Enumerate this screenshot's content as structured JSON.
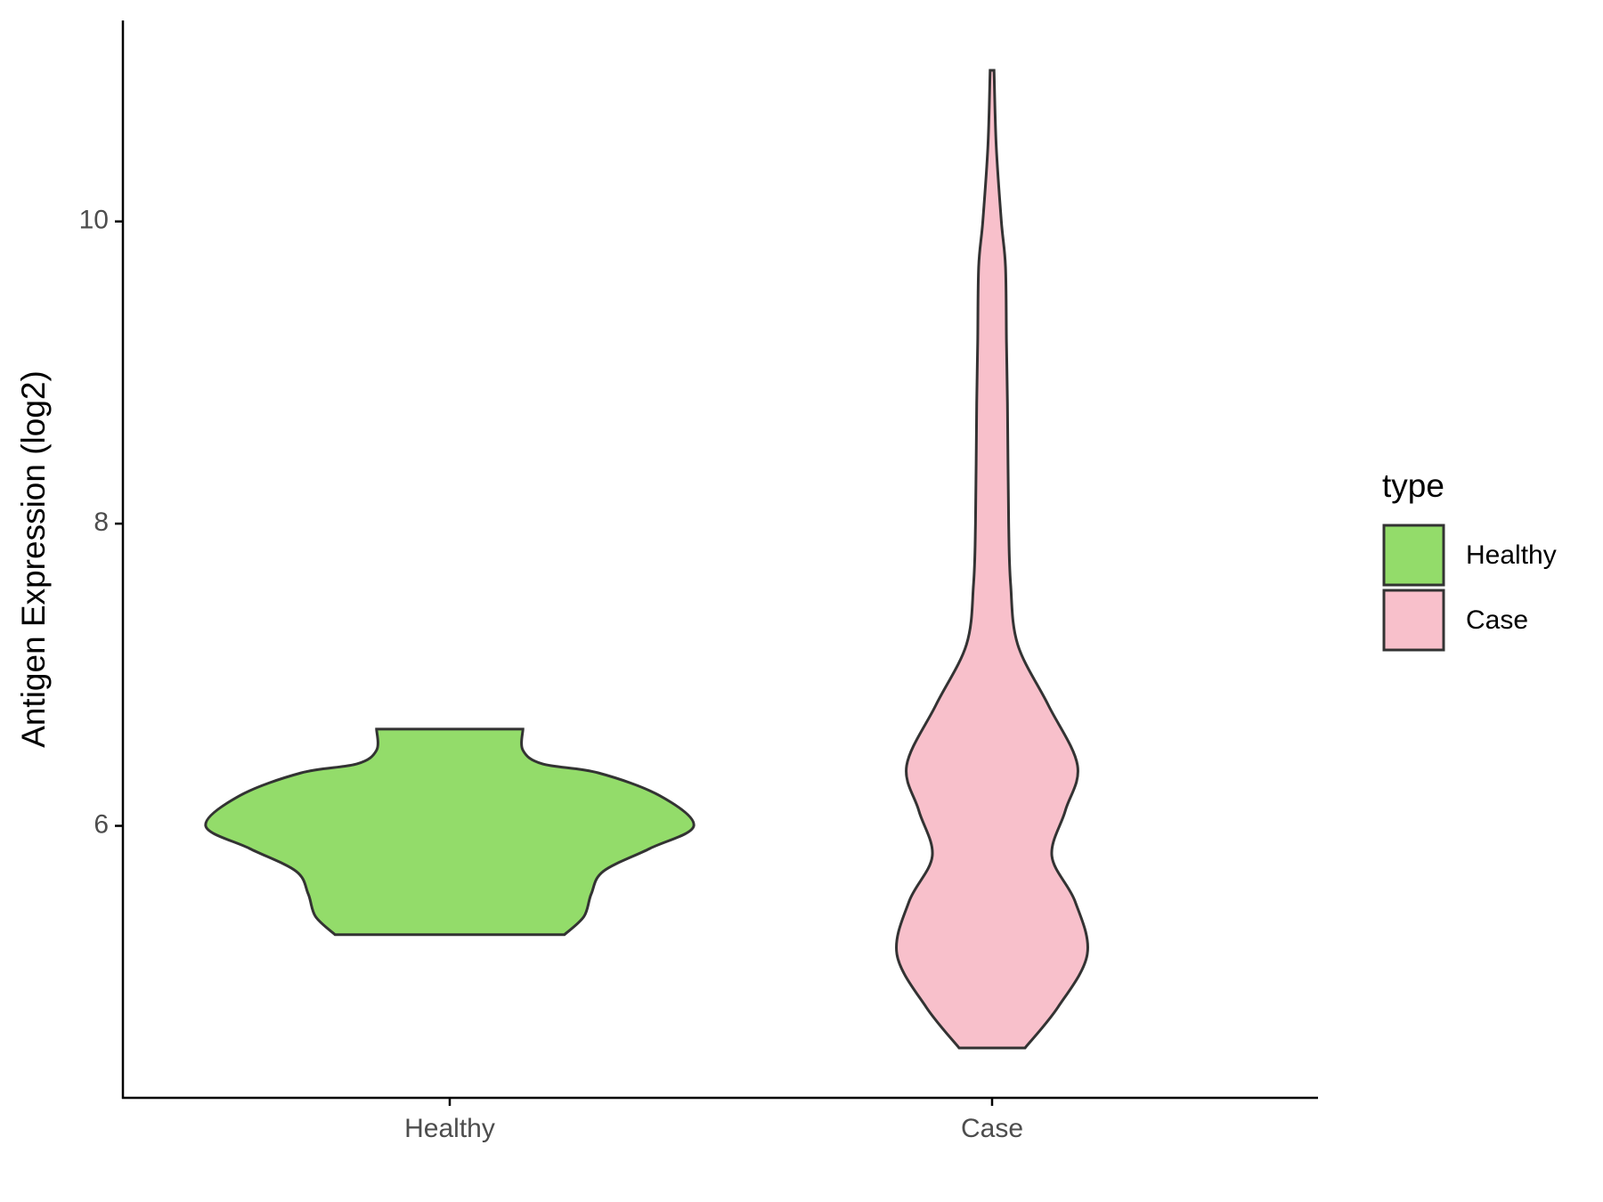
{
  "chart_data": {
    "type": "violin",
    "y_label": "Antigen Expression (log2)",
    "categories": [
      "Healthy",
      "Case"
    ],
    "ylim": [
      4.2,
      11.33
    ],
    "yticks": [
      6,
      8,
      10
    ],
    "legend_title": "type",
    "legend_position": "right",
    "series": [
      {
        "name": "Healthy",
        "color": "#93dc6a",
        "y": [
          5.28,
          5.4,
          5.55,
          5.7,
          5.85,
          6.0,
          6.2,
          6.35,
          6.41,
          6.5,
          6.64
        ],
        "width": [
          0.47,
          0.55,
          0.58,
          0.63,
          0.82,
          1.0,
          0.86,
          0.61,
          0.38,
          0.3,
          0.3
        ]
      },
      {
        "name": "Case",
        "color": "#f8c0cb",
        "y": [
          4.53,
          4.8,
          5.15,
          5.5,
          5.8,
          6.1,
          6.4,
          6.8,
          7.2,
          7.6,
          8.0,
          8.8,
          9.2,
          9.7,
          10.0,
          10.5,
          11.0
        ],
        "width": [
          0.135,
          0.27,
          0.39,
          0.34,
          0.245,
          0.3,
          0.35,
          0.23,
          0.105,
          0.076,
          0.068,
          0.063,
          0.059,
          0.055,
          0.038,
          0.017,
          0.008
        ]
      }
    ]
  }
}
